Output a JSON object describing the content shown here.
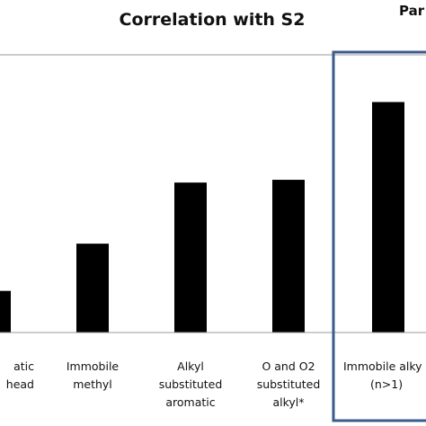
{
  "chart_data": {
    "type": "bar",
    "title": "Correlation with S2",
    "cut_title": "Par",
    "categories": [
      [
        "atic",
        "head"
      ],
      [
        "Immobile",
        "methyl"
      ],
      [
        "Alkyl",
        "substituted",
        "aromatic"
      ],
      [
        "O and O2",
        "substituted",
        "alkyl*"
      ],
      [
        "Immobile alky",
        "(n>1)"
      ]
    ],
    "values": [
      0.15,
      0.32,
      0.54,
      0.55,
      0.83
    ],
    "ylim": [
      0,
      1
    ],
    "xlabel": "",
    "ylabel": "",
    "grid": false,
    "legend": "none",
    "highlighted_category_index": 4,
    "colors": {
      "bar": "#000000",
      "axis": "#9a9a9a",
      "highlight_box": "#3b5b8c",
      "text": "#111111"
    }
  }
}
